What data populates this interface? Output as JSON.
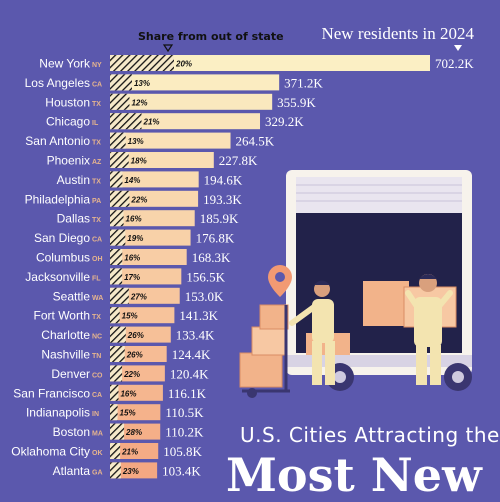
{
  "header": {
    "share_label": "Share from out of state",
    "new_residents_label": "New residents in 2024"
  },
  "footer": {
    "subtitle": "U.S. Cities Attracting the",
    "title_fragment": "Most New"
  },
  "colors": {
    "background": "#5b58ad",
    "bar_top": "#fbefc4",
    "bar_bottom": "#f4a882",
    "hatch": "#111111",
    "truck": "#f7f3ec",
    "box": "#f2b38a"
  },
  "chart_data": {
    "type": "bar",
    "orientation": "horizontal",
    "unit": "K",
    "categories": [
      "New York",
      "Los Angeles",
      "Houston",
      "Chicago",
      "San Antonio",
      "Phoenix",
      "Austin",
      "Philadelphia",
      "Dallas",
      "San Diego",
      "Columbus",
      "Jacksonville",
      "Seattle",
      "Fort Worth",
      "Charlotte",
      "Nashville",
      "Denver",
      "San Francisco",
      "Indianapolis",
      "Boston",
      "Oklahoma City",
      "Atlanta"
    ],
    "states": [
      "NY",
      "CA",
      "TX",
      "IL",
      "TX",
      "AZ",
      "TX",
      "PA",
      "TX",
      "CA",
      "OH",
      "FL",
      "WA",
      "TX",
      "NC",
      "TN",
      "CO",
      "CA",
      "IN",
      "MA",
      "OK",
      "GA"
    ],
    "series": [
      {
        "name": "New residents in 2024",
        "values": [
          702.2,
          371.2,
          355.9,
          329.2,
          264.5,
          227.8,
          194.6,
          193.3,
          185.9,
          176.8,
          168.3,
          156.5,
          153.0,
          141.3,
          133.4,
          124.4,
          120.4,
          116.1,
          110.5,
          110.2,
          105.8,
          103.4
        ]
      },
      {
        "name": "Share from out of state",
        "values": [
          20,
          13,
          12,
          21,
          13,
          18,
          14,
          22,
          16,
          19,
          16,
          17,
          27,
          15,
          26,
          26,
          22,
          16,
          15,
          28,
          21,
          23
        ]
      }
    ],
    "value_labels": [
      "702.2K",
      "371.2K",
      "355.9K",
      "329.2K",
      "264.5K",
      "227.8K",
      "194.6K",
      "193.3K",
      "185.9K",
      "176.8K",
      "168.3K",
      "156.5K",
      "153.0K",
      "141.3K",
      "133.4K",
      "124.4K",
      "120.4K",
      "116.1K",
      "110.5K",
      "110.2K",
      "105.8K",
      "103.4K"
    ],
    "share_labels": [
      "20%",
      "13%",
      "12%",
      "21%",
      "13%",
      "18%",
      "14%",
      "22%",
      "16%",
      "19%",
      "16%",
      "17%",
      "27%",
      "15%",
      "26%",
      "26%",
      "22%",
      "16%",
      "15%",
      "28%",
      "21%",
      "23%"
    ]
  }
}
